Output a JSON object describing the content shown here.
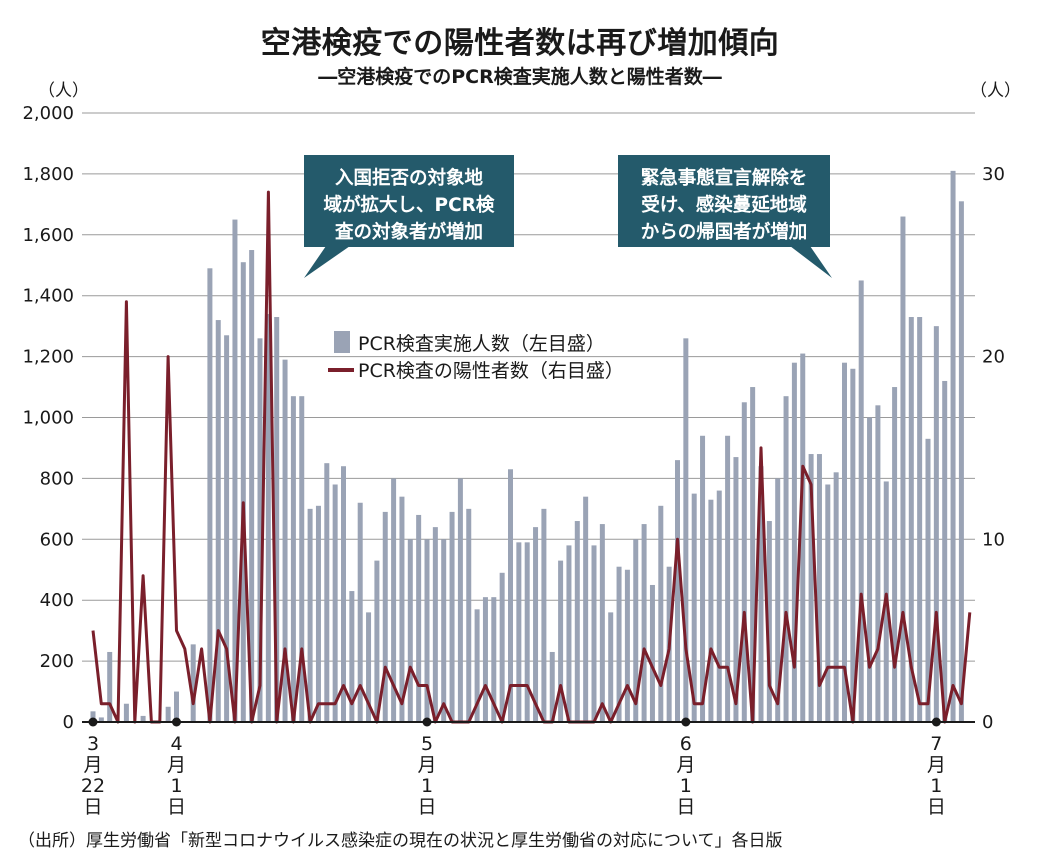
{
  "title": "空港検疫での陽性者数は再び増加傾向",
  "subtitle": "―空港検疫でのPCR検査実施人数と陽性者数―",
  "source": "（出所）厚生労働省「新型コロナウイルス感染症の現在の状況と厚生労働省の対応について」各日版",
  "chart_data": {
    "type": "bar+line",
    "left_axis": {
      "unit": "（人）",
      "ylim": [
        0,
        2000
      ],
      "ticks": [
        "0",
        "200",
        "400",
        "600",
        "800",
        "1,000",
        "1,200",
        "1,400",
        "1,600",
        "1,800",
        "2,000"
      ]
    },
    "right_axis": {
      "unit": "（人）",
      "ylim": [
        0,
        33.33
      ],
      "ticks": [
        "0",
        "10",
        "20",
        "30"
      ]
    },
    "x_labels": [
      {
        "index": 0,
        "lines": [
          "3",
          "月",
          "22",
          "日"
        ]
      },
      {
        "index": 10,
        "lines": [
          "4",
          "月",
          "1",
          "日"
        ]
      },
      {
        "index": 40,
        "lines": [
          "5",
          "月",
          "1",
          "日"
        ]
      },
      {
        "index": 71,
        "lines": [
          "6",
          "月",
          "1",
          "日"
        ]
      },
      {
        "index": 101,
        "lines": [
          "7",
          "月",
          "1",
          "日"
        ]
      }
    ],
    "grid": true,
    "legend": "center",
    "series": [
      {
        "name": "PCR検査実施人数（左目盛）",
        "axis": "left",
        "kind": "bar",
        "color": "#9aa3b5",
        "values": [
          35,
          15,
          230,
          0,
          60,
          0,
          20,
          0,
          0,
          50,
          100,
          0,
          255,
          0,
          1490,
          1320,
          1270,
          1650,
          1510,
          1550,
          1260,
          1340,
          1330,
          1190,
          1070,
          1070,
          700,
          710,
          850,
          780,
          840,
          430,
          720,
          360,
          530,
          690,
          800,
          740,
          600,
          680,
          600,
          640,
          600,
          690,
          800,
          700,
          370,
          410,
          410,
          490,
          830,
          590,
          590,
          640,
          700,
          230,
          530,
          580,
          660,
          740,
          580,
          650,
          360,
          510,
          500,
          600,
          650,
          450,
          710,
          510,
          860,
          1260,
          750,
          940,
          730,
          760,
          940,
          870,
          1050,
          1100,
          840,
          660,
          800,
          1070,
          1180,
          1210,
          880,
          880,
          780,
          820,
          1180,
          1160,
          1450,
          1000,
          1040,
          790,
          1100,
          1660,
          1330,
          1330,
          930,
          1300,
          1120,
          1810,
          1710
        ]
      },
      {
        "name": "PCR検査の陽性者数（右目盛）",
        "axis": "right",
        "kind": "line",
        "color": "#7a1f2b",
        "values": [
          5,
          1,
          1,
          0,
          23,
          0,
          8,
          0,
          0,
          20,
          5,
          4,
          1,
          4,
          0,
          5,
          4,
          0,
          12,
          0,
          2,
          29,
          0,
          4,
          0,
          4,
          0,
          1,
          1,
          1,
          2,
          1,
          2,
          1,
          0,
          3,
          2,
          1,
          3,
          2,
          2,
          0,
          1,
          0,
          0,
          0,
          1,
          2,
          1,
          0,
          2,
          2,
          2,
          1,
          0,
          0,
          2,
          0,
          0,
          0,
          0,
          1,
          0,
          1,
          2,
          1,
          4,
          3,
          2,
          4,
          10,
          4,
          1,
          1,
          4,
          3,
          3,
          1,
          6,
          0,
          15,
          2,
          1,
          6,
          3,
          14,
          13,
          2,
          3,
          3,
          3,
          0,
          7,
          3,
          4,
          7,
          3,
          6,
          3,
          1,
          1,
          6,
          0,
          2,
          1,
          6
        ]
      }
    ],
    "annotations": [
      {
        "lines": [
          "入国拒否の対象地",
          "域が拡大し、PCR検",
          "査の対象者が増加"
        ]
      },
      {
        "lines": [
          "緊急事態宣言解除を",
          "受け、感染蔓延地域",
          "からの帰国者が増加"
        ]
      }
    ]
  }
}
